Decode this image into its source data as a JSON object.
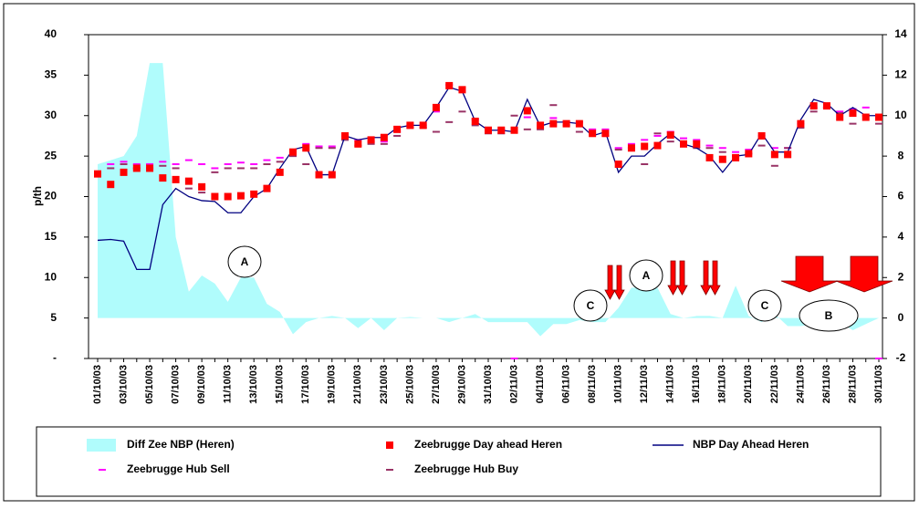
{
  "chart_data": {
    "type": "combo",
    "y_label": "p/th",
    "categories": [
      "01/10/03",
      null,
      "03/10/03",
      null,
      "05/10/03",
      null,
      "07/10/03",
      null,
      "09/10/03",
      null,
      "11/10/03",
      null,
      "13/10/03",
      null,
      "15/10/03",
      null,
      "17/10/03",
      null,
      "19/10/03",
      null,
      "21/10/03",
      null,
      "23/10/03",
      null,
      "25/10/03",
      null,
      "27/10/03",
      null,
      "29/10/03",
      null,
      "31/10/03",
      null,
      "02/11/03",
      null,
      "04/11/03",
      null,
      "06/11/03",
      null,
      "08/11/03",
      null,
      "10/11/03",
      null,
      "12/11/03",
      null,
      "14/11/03",
      null,
      "16/11/03",
      null,
      "18/11/03",
      null,
      "20/11/03",
      null,
      "22/11/03",
      null,
      "24/11/03",
      null,
      "26/11/03",
      null,
      "28/11/03",
      null,
      "30/11/03"
    ],
    "series": [
      {
        "name": "Diff Zee NBP (Heren)",
        "kind": "area",
        "axis": "y2",
        "color": "#b0fcfc",
        "values": [
          7.6,
          7.8,
          8.0,
          9.0,
          12.6,
          12.6,
          4.0,
          1.3,
          2.1,
          1.7,
          0.8,
          2.0,
          2.0,
          0.7,
          0.3,
          -0.8,
          -0.2,
          0,
          0.1,
          0,
          -0.5,
          0,
          -0.6,
          0,
          0.05,
          0,
          0,
          -0.2,
          0,
          0.2,
          -0.2,
          -0.2,
          -0.2,
          -0.2,
          -0.9,
          -0.3,
          -0.3,
          -0.1,
          -0.2,
          -0.2,
          0.5,
          1.5,
          1.5,
          1.5,
          0.2,
          0,
          0.1,
          0.1,
          0,
          1.6,
          0.1,
          -0.2,
          0.2,
          -0.4,
          -0.4,
          -0.3,
          0.1,
          -0.2,
          -0.6,
          -0.3,
          0
        ]
      },
      {
        "name": "Zeebrugge Day ahead Heren",
        "kind": "square",
        "color": "#ff0000",
        "values": [
          22.8,
          21.5,
          23.0,
          23.5,
          23.5,
          22.3,
          22.1,
          21.9,
          21.2,
          20.0,
          20.0,
          20.1,
          20.3,
          21.0,
          23.0,
          25.5,
          26.0,
          22.7,
          22.7,
          27.5,
          26.5,
          27.0,
          27.3,
          28.3,
          28.8,
          28.8,
          31.0,
          33.7,
          33.2,
          29.3,
          28.2,
          28.2,
          28.2,
          30.6,
          28.8,
          29.0,
          29.0,
          29.0,
          27.8,
          27.8,
          24.0,
          26.0,
          26.2,
          26.3,
          27.6,
          26.5,
          26.5,
          24.8,
          24.6,
          24.8,
          25.3,
          27.5,
          25.2,
          25.2,
          29.0,
          31.2,
          31.2,
          29.8,
          30.3,
          29.8,
          29.8
        ]
      },
      {
        "name": "NBP Day Ahead Heren",
        "kind": "line",
        "color": "#000080",
        "values": [
          14.6,
          14.7,
          14.5,
          11.0,
          11.0,
          19.0,
          21.0,
          20.0,
          19.5,
          19.4,
          18.0,
          18.0,
          20.0,
          21.0,
          23.5,
          25.8,
          26.2,
          22.7,
          22.7,
          27.5,
          27.0,
          27.3,
          27.3,
          28.5,
          28.8,
          28.8,
          31.0,
          33.5,
          33.0,
          29.3,
          28.2,
          28.2,
          28.0,
          32.0,
          28.7,
          29.2,
          29.2,
          29.0,
          27.5,
          28.0,
          23.0,
          25.0,
          25.0,
          26.5,
          27.8,
          26.5,
          26.0,
          25.0,
          23.0,
          25.0,
          25.2,
          27.8,
          25.5,
          25.5,
          29.5,
          32.0,
          31.5,
          30.0,
          31.0,
          30.0,
          30.0
        ]
      },
      {
        "name": "Zeebrugge Hub Sell",
        "kind": "dash",
        "color": "#ff00ff",
        "values": [
          23.0,
          24.0,
          24.3,
          24.0,
          24.0,
          24.3,
          24.0,
          24.5,
          24.0,
          23.5,
          24.0,
          24.2,
          24.0,
          24.5,
          24.8,
          25.8,
          26.5,
          26.2,
          26.2,
          27.5,
          27.0,
          26.8,
          26.8,
          28.0,
          28.8,
          28.8,
          30.5,
          33.8,
          33.0,
          29.5,
          28.3,
          28.3,
          0,
          29.8,
          28.8,
          29.7,
          29.3,
          29.2,
          28.3,
          28.3,
          26.0,
          26.5,
          27.0,
          27.5,
          28.0,
          27.2,
          27.0,
          26.3,
          26.0,
          25.5,
          25.8,
          27.5,
          26.0,
          26.0,
          29.0,
          31.0,
          31.0,
          30.5,
          30.8,
          31.0,
          0
        ]
      },
      {
        "name": "Zeebrugge Hub Buy",
        "kind": "dash",
        "color": "#993366",
        "values": [
          22.5,
          23.5,
          24.0,
          23.5,
          23.5,
          23.8,
          23.5,
          21.0,
          20.5,
          23.0,
          23.5,
          23.5,
          23.5,
          24.0,
          24.3,
          25.0,
          24.0,
          26.0,
          26.0,
          27.0,
          26.3,
          26.5,
          26.5,
          27.5,
          28.5,
          28.5,
          28.0,
          29.2,
          30.5,
          28.8,
          27.8,
          27.8,
          30.0,
          28.3,
          28.3,
          31.3,
          28.8,
          28.0,
          27.8,
          27.5,
          25.8,
          26.0,
          24.0,
          27.8,
          26.8,
          26.5,
          26.0,
          26.0,
          25.5,
          25.0,
          25.3,
          26.3,
          23.8,
          26.0,
          28.5,
          30.5,
          31.0,
          30.3,
          29.0,
          30.0,
          29.0
        ]
      }
    ],
    "ylim": [
      0,
      40
    ],
    "yticks": [
      {
        "value": 0,
        "label": "-"
      },
      5,
      10,
      15,
      20,
      25,
      30,
      35,
      40
    ],
    "y2lim": [
      -2,
      14
    ],
    "y2ticks": [
      -2,
      0,
      2,
      4,
      6,
      8,
      10,
      12,
      14
    ],
    "grid": false,
    "annotations": [
      "A",
      "A",
      "C",
      "C",
      "B"
    ]
  }
}
